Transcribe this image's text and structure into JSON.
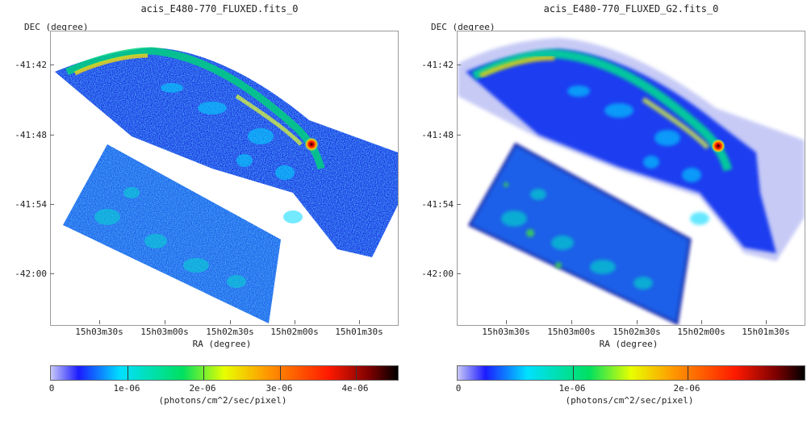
{
  "left_panel": {
    "title": "acis_E480-770_FLUXED.fits_0",
    "y_axis_label": "DEC (degree)",
    "x_axis_label": "RA (degree)",
    "y_ticks": [
      "-41:42",
      "-41:48",
      "-41:54",
      "-42:00"
    ],
    "x_ticks": [
      "15h03m30s",
      "15h03m00s",
      "15h02m30s",
      "15h02m00s",
      "15h01m30s"
    ],
    "colorbar_ticks": [
      "0",
      "1e-06",
      "2e-06",
      "3e-06",
      "4e-06"
    ],
    "colorbar_unit": "(photons/cm^2/sec/pixel)"
  },
  "right_panel": {
    "title": "acis_E480-770_FLUXED_G2.fits_0",
    "y_axis_label": "DEC (degree)",
    "x_axis_label": "RA (degree)",
    "y_ticks": [
      "-41:42",
      "-41:48",
      "-41:54",
      "-42:00"
    ],
    "x_ticks": [
      "15h03m30s",
      "15h03m00s",
      "15h02m30s",
      "15h02m00s",
      "15h01m30s"
    ],
    "colorbar_ticks": [
      "0",
      "1e-06",
      "2e-06"
    ],
    "colorbar_unit": "(photons/cm^2/sec/pixel)"
  },
  "colors": {
    "low": "#1c1cff",
    "mid": "#00d0ff",
    "high": "#ff2000",
    "peak": "#200000"
  }
}
